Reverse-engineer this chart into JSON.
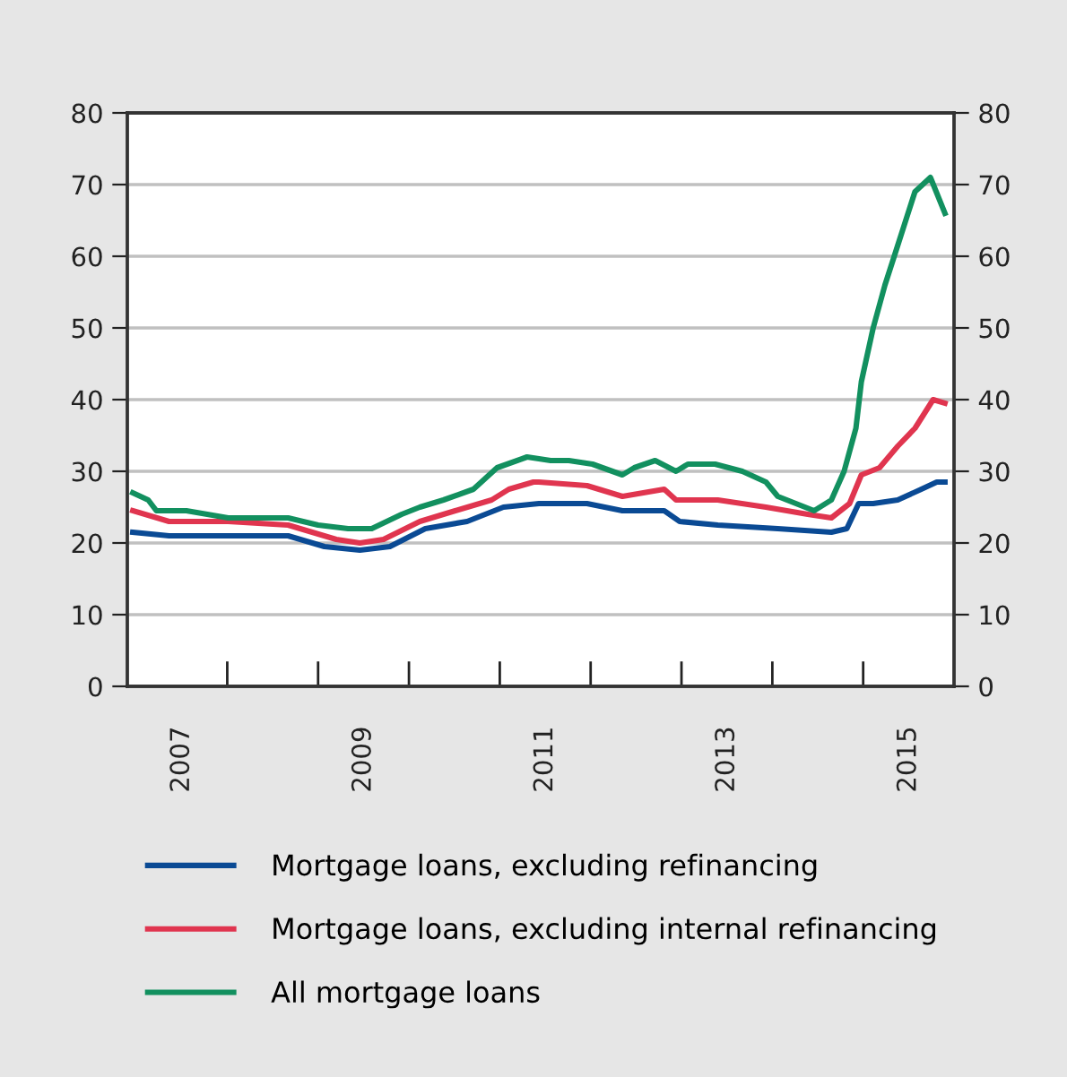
{
  "chart_data": {
    "type": "line",
    "xlim": [
      2006.9,
      2016.0
    ],
    "xticks": [
      {
        "value": 2007.5,
        "label": "2007"
      },
      {
        "value": 2008,
        "label": null
      },
      {
        "value": 2009,
        "label": null
      },
      {
        "value": 2009.5,
        "label": "2009"
      },
      {
        "value": 2010,
        "label": null
      },
      {
        "value": 2011,
        "label": null
      },
      {
        "value": 2011.5,
        "label": "2011"
      },
      {
        "value": 2012,
        "label": null
      },
      {
        "value": 2013,
        "label": null
      },
      {
        "value": 2013.5,
        "label": "2013"
      },
      {
        "value": 2014,
        "label": null
      },
      {
        "value": 2015,
        "label": null
      },
      {
        "value": 2015.5,
        "label": "2015"
      }
    ],
    "ylim": [
      0,
      80
    ],
    "yticks": [
      0,
      10,
      20,
      30,
      40,
      50,
      60,
      70,
      80
    ],
    "y2lim": [
      0,
      80
    ],
    "y2ticks": [
      0,
      10,
      20,
      30,
      40,
      50,
      60,
      70,
      80
    ],
    "grid": "y",
    "legend": "bottom",
    "marker": "none",
    "line_style": "solid",
    "series": [
      {
        "name": "Mortgage loans, excluding refinancing",
        "color": "#0a4a94",
        "x": [
          2006.96,
          2007.36,
          2008.01,
          2008.67,
          2009.07,
          2009.46,
          2009.79,
          2010.18,
          2010.64,
          2011.04,
          2011.43,
          2011.96,
          2012.35,
          2012.81,
          2012.98,
          2013.4,
          2014.06,
          2014.65,
          2014.82,
          2014.95,
          2015.11,
          2015.38,
          2015.64,
          2015.81,
          2015.9
        ],
        "values": [
          21.5,
          21,
          21,
          21,
          19.5,
          19,
          19.5,
          22,
          23,
          25,
          25.5,
          25.5,
          24.5,
          24.5,
          23,
          22.5,
          22,
          21.5,
          22,
          25.5,
          25.5,
          26,
          27.5,
          28.5,
          28.5
        ]
      },
      {
        "name": "Mortgage loans, excluding internal refinancing",
        "color": "#e0354f",
        "x": [
          2006.96,
          2007.36,
          2008.01,
          2008.67,
          2009.2,
          2009.46,
          2009.72,
          2010.12,
          2010.51,
          2010.91,
          2011.1,
          2011.37,
          2011.43,
          2011.96,
          2012.35,
          2012.81,
          2012.94,
          2013.4,
          2013.93,
          2014.39,
          2014.65,
          2014.85,
          2014.98,
          2015.18,
          2015.38,
          2015.57,
          2015.77,
          2015.9
        ],
        "values": [
          24.5,
          23,
          23,
          22.5,
          20.5,
          20,
          20.5,
          23,
          24.5,
          26,
          27.5,
          28.5,
          28.5,
          28,
          26.5,
          27.5,
          26,
          26,
          25,
          24,
          23.5,
          25.5,
          29.5,
          30.5,
          33.5,
          36,
          40,
          39.5
        ]
      },
      {
        "name": "All mortgage loans",
        "color": "#12905f",
        "x": [
          2006.96,
          2007.13,
          2007.22,
          2007.55,
          2008.01,
          2008.41,
          2008.67,
          2009.0,
          2009.33,
          2009.59,
          2009.92,
          2010.12,
          2010.38,
          2010.71,
          2010.97,
          2011.3,
          2011.56,
          2011.76,
          2012.02,
          2012.35,
          2012.48,
          2012.71,
          2012.94,
          2013.07,
          2013.37,
          2013.67,
          2013.93,
          2014.06,
          2014.46,
          2014.65,
          2014.79,
          2014.92,
          2014.98,
          2015.11,
          2015.24,
          2015.38,
          2015.57,
          2015.74,
          2015.9
        ],
        "values": [
          27,
          26,
          24.5,
          24.5,
          23.5,
          23.5,
          23.5,
          22.5,
          22,
          22,
          24,
          25,
          26,
          27.5,
          30.5,
          32,
          31.5,
          31.5,
          31,
          29.5,
          30.5,
          31.5,
          30,
          31,
          31,
          30,
          28.5,
          26.5,
          24.5,
          26,
          30,
          36,
          42.5,
          50,
          56,
          61.5,
          69,
          71,
          66
        ]
      }
    ]
  }
}
